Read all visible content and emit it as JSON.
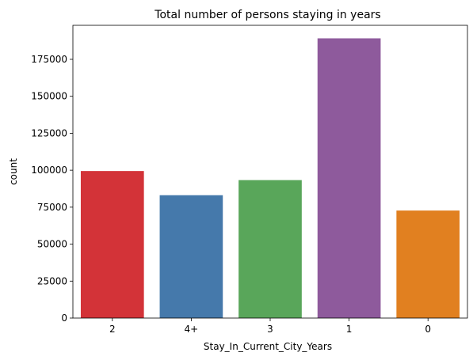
{
  "chart_data": {
    "type": "bar",
    "title": "Total number of persons staying in years",
    "xlabel": "Stay_In_Current_City_Years",
    "ylabel": "count",
    "categories": [
      "2",
      "4+",
      "3",
      "1",
      "0"
    ],
    "values": [
      99459,
      83094,
      93312,
      189192,
      72725
    ],
    "colors": [
      "#d33338",
      "#4579ab",
      "#59a65a",
      "#8e5a9c",
      "#e18020"
    ],
    "ylim": [
      0,
      198000
    ],
    "yticks": [
      0,
      25000,
      50000,
      75000,
      100000,
      125000,
      150000,
      175000
    ],
    "grid": false,
    "legend": "none"
  }
}
